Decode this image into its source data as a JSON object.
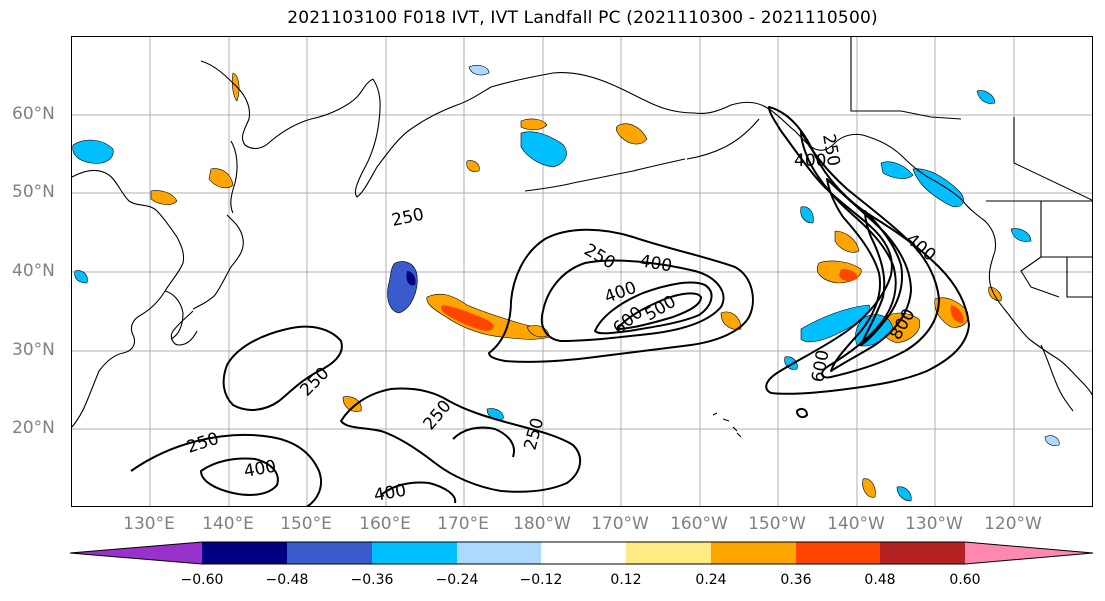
{
  "title": "2021103100 F018 IVT, IVT Landfall PC (2021110300 - 2021110500)",
  "lat_labels": [
    "60°N",
    "50°N",
    "40°N",
    "30°N",
    "20°N"
  ],
  "lon_labels": [
    "130°E",
    "140°E",
    "150°E",
    "160°E",
    "170°E",
    "180°W",
    "170°W",
    "160°W",
    "150°W",
    "140°W",
    "130°W",
    "120°W"
  ],
  "colorbar": {
    "colors": [
      "#9932CC",
      "#000080",
      "#3A5BCC",
      "#00BFFF",
      "#ADD8FF",
      "#FFFFFF",
      "#FFEB84",
      "#FFA500",
      "#FF4500",
      "#B22222",
      "#FF88B0"
    ],
    "tick_labels": [
      "−0.60",
      "−0.48",
      "−0.36",
      "−0.24",
      "−0.12",
      "0.12",
      "0.24",
      "0.36",
      "0.48",
      "0.60"
    ]
  },
  "contour_labels": [
    "250",
    "400",
    "250",
    "400",
    "600",
    "500",
    "250",
    "400",
    "600",
    "800",
    "250",
    "250",
    "250",
    "400",
    "400",
    "250"
  ],
  "colors": {
    "coastline": "#000000",
    "gridline": "#b0b0b0",
    "contour": "#000000",
    "axis_tick_text": "#808080"
  }
}
